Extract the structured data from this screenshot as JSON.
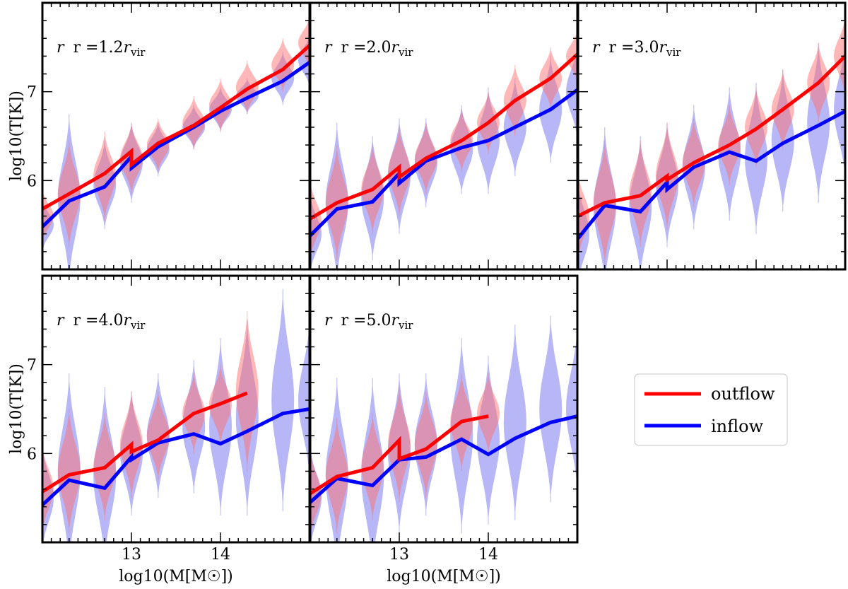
{
  "chart_data": {
    "type": "line",
    "title": "",
    "ylabel": "log10(T[K])",
    "xlabel": "log10(M[M☉])",
    "xlim": [
      12.0,
      15.0
    ],
    "ylim": [
      5.0,
      8.0
    ],
    "xticks": [
      13,
      14
    ],
    "yticks": [
      6,
      7
    ],
    "legend": {
      "placement": "right",
      "entries": [
        {
          "name": "outflow",
          "color": "#ff0000"
        },
        {
          "name": "inflow",
          "color": "#0000ff"
        }
      ]
    },
    "colors": {
      "outflow_line": "#ff0000",
      "inflow_line": "#0000ff",
      "outflow_fill": "#ff6f6f",
      "inflow_fill": "#7c7cf2"
    },
    "panels": [
      {
        "label_prefix": "r =",
        "label_value": "1.2",
        "label_unit": "r",
        "label_sub": "vir",
        "outflow": {
          "x": [
            12.0,
            12.3,
            12.7,
            13.0,
            13.0,
            13.3,
            13.7,
            14.0,
            14.3,
            14.7,
            15.0
          ],
          "y": [
            5.68,
            5.85,
            6.08,
            6.33,
            6.18,
            6.42,
            6.62,
            6.82,
            7.03,
            7.25,
            7.52
          ]
        },
        "inflow": {
          "x": [
            12.0,
            12.3,
            12.7,
            13.0,
            13.0,
            13.3,
            13.7,
            14.0,
            14.3,
            14.7,
            15.0
          ],
          "y": [
            5.48,
            5.77,
            5.93,
            6.27,
            6.14,
            6.38,
            6.6,
            6.78,
            6.93,
            7.12,
            7.33
          ]
        },
        "violins": {
          "x": [
            12.0,
            12.3,
            12.7,
            13.0,
            13.3,
            13.7,
            14.0,
            14.3,
            14.7,
            15.0
          ],
          "outflow_center": [
            5.6,
            5.85,
            6.05,
            6.25,
            6.4,
            6.65,
            6.85,
            7.05,
            7.3,
            7.55
          ],
          "outflow_halfrange": [
            0.3,
            0.6,
            0.5,
            0.4,
            0.3,
            0.3,
            0.3,
            0.3,
            0.3,
            0.3
          ],
          "inflow_center": [
            5.5,
            5.8,
            5.95,
            6.2,
            6.35,
            6.6,
            6.8,
            6.95,
            7.15,
            7.35
          ],
          "inflow_halfrange": [
            0.3,
            0.95,
            0.5,
            0.45,
            0.3,
            0.25,
            0.25,
            0.2,
            0.3,
            0.3
          ]
        }
      },
      {
        "label_prefix": "r =",
        "label_value": "2.0",
        "label_unit": "r",
        "label_sub": "vir",
        "outflow": {
          "x": [
            12.0,
            12.3,
            12.7,
            13.0,
            13.0,
            13.3,
            13.7,
            14.0,
            14.3,
            14.7,
            15.0
          ],
          "y": [
            5.57,
            5.75,
            5.9,
            6.15,
            6.04,
            6.25,
            6.45,
            6.65,
            6.9,
            7.15,
            7.42
          ]
        },
        "inflow": {
          "x": [
            12.0,
            12.3,
            12.7,
            13.0,
            13.0,
            13.3,
            13.7,
            14.0,
            14.3,
            14.7,
            15.0
          ],
          "y": [
            5.38,
            5.68,
            5.76,
            6.08,
            5.97,
            6.22,
            6.37,
            6.45,
            6.6,
            6.8,
            7.02
          ]
        },
        "violins": {
          "x": [
            12.0,
            12.3,
            12.7,
            13.0,
            13.3,
            13.7,
            14.0,
            14.3,
            14.7,
            15.0
          ],
          "outflow_center": [
            5.55,
            5.75,
            5.9,
            6.1,
            6.25,
            6.45,
            6.65,
            6.9,
            7.15,
            7.4
          ],
          "outflow_halfrange": [
            0.45,
            0.65,
            0.5,
            0.5,
            0.4,
            0.35,
            0.35,
            0.4,
            0.35,
            0.3
          ],
          "inflow_center": [
            5.4,
            5.75,
            5.8,
            6.05,
            6.2,
            6.35,
            6.45,
            6.6,
            6.8,
            7.0
          ],
          "inflow_halfrange": [
            0.45,
            0.9,
            0.7,
            0.65,
            0.5,
            0.5,
            0.6,
            0.55,
            0.6,
            0.55
          ]
        }
      },
      {
        "label_prefix": "r =",
        "label_value": "3.0",
        "label_unit": "r",
        "label_sub": "vir",
        "outflow": {
          "x": [
            12.0,
            12.3,
            12.7,
            13.0,
            13.0,
            13.3,
            13.7,
            14.0,
            14.3,
            14.7,
            15.0
          ],
          "y": [
            5.6,
            5.75,
            5.83,
            6.05,
            6.01,
            6.2,
            6.4,
            6.58,
            6.8,
            7.1,
            7.4
          ]
        },
        "inflow": {
          "x": [
            12.0,
            12.3,
            12.7,
            13.0,
            13.0,
            13.3,
            13.7,
            14.0,
            14.3,
            14.7,
            15.0
          ],
          "y": [
            5.35,
            5.72,
            5.65,
            5.98,
            5.9,
            6.15,
            6.32,
            6.22,
            6.42,
            6.62,
            6.78
          ]
        },
        "violins": {
          "x": [
            12.0,
            12.3,
            12.7,
            13.0,
            13.3,
            13.7,
            14.0,
            14.3,
            14.7,
            15.0
          ],
          "outflow_center": [
            5.6,
            5.75,
            5.85,
            6.05,
            6.2,
            6.4,
            6.6,
            6.8,
            7.1,
            7.4
          ],
          "outflow_halfrange": [
            0.5,
            0.7,
            0.6,
            0.6,
            0.5,
            0.45,
            0.45,
            0.45,
            0.45,
            0.45
          ],
          "inflow_center": [
            5.4,
            5.7,
            5.7,
            5.95,
            6.15,
            6.3,
            6.25,
            6.45,
            6.65,
            6.8
          ],
          "inflow_halfrange": [
            0.6,
            0.9,
            0.8,
            0.7,
            0.7,
            0.75,
            0.85,
            0.8,
            0.9,
            0.8
          ]
        }
      },
      {
        "label_prefix": "r =",
        "label_value": "4.0",
        "label_unit": "r",
        "label_sub": "vir",
        "outflow": {
          "x": [
            12.0,
            12.3,
            12.7,
            13.0,
            13.0,
            13.3,
            13.7,
            14.0,
            14.3
          ],
          "y": [
            5.57,
            5.76,
            5.84,
            6.1,
            6.02,
            6.15,
            6.45,
            6.56,
            6.68
          ]
        },
        "inflow": {
          "x": [
            12.0,
            12.3,
            12.7,
            13.0,
            13.0,
            13.3,
            13.7,
            14.0,
            14.3,
            14.7,
            15.0
          ],
          "y": [
            5.42,
            5.7,
            5.61,
            5.96,
            5.93,
            6.12,
            6.22,
            6.11,
            6.25,
            6.45,
            6.5
          ]
        },
        "violins": {
          "x": [
            12.0,
            12.3,
            12.7,
            13.0,
            13.3,
            13.7,
            14.0,
            14.3,
            14.7,
            15.0
          ],
          "outflow_center": [
            5.6,
            5.8,
            5.85,
            6.1,
            6.2,
            6.45,
            6.55,
            6.7,
            null,
            null
          ],
          "outflow_halfrange": [
            0.5,
            0.7,
            0.6,
            0.6,
            0.5,
            0.45,
            0.45,
            0.9,
            null,
            null
          ],
          "inflow_center": [
            5.5,
            5.8,
            5.75,
            6.0,
            6.2,
            6.3,
            6.3,
            6.4,
            6.6,
            6.6
          ],
          "inflow_halfrange": [
            0.6,
            1.1,
            1.0,
            0.7,
            0.7,
            0.75,
            1.0,
            1.1,
            1.25,
            0.9
          ]
        }
      },
      {
        "label_prefix": "r =",
        "label_value": "5.0",
        "label_unit": "r",
        "label_sub": "vir",
        "outflow": {
          "x": [
            12.0,
            12.3,
            12.7,
            13.0,
            13.0,
            13.3,
            13.7,
            14.0
          ],
          "y": [
            5.55,
            5.74,
            5.84,
            6.15,
            5.94,
            6.05,
            6.36,
            6.42
          ]
        },
        "inflow": {
          "x": [
            12.0,
            12.3,
            12.7,
            13.0,
            13.0,
            13.3,
            13.7,
            14.0,
            14.3,
            14.7,
            15.0
          ],
          "y": [
            5.45,
            5.72,
            5.64,
            5.93,
            5.93,
            5.96,
            6.16,
            5.99,
            6.17,
            6.35,
            6.42
          ]
        },
        "violins": {
          "x": [
            12.0,
            12.3,
            12.7,
            13.0,
            13.3,
            13.7,
            14.0,
            14.3,
            14.7,
            15.0
          ],
          "outflow_center": [
            5.55,
            5.75,
            5.85,
            6.1,
            6.1,
            6.35,
            6.45,
            null,
            null,
            null
          ],
          "outflow_halfrange": [
            0.5,
            0.65,
            0.6,
            0.65,
            0.6,
            0.55,
            0.45,
            null,
            null,
            null
          ],
          "inflow_center": [
            5.5,
            5.75,
            5.75,
            6.0,
            6.1,
            6.2,
            6.15,
            6.35,
            6.5,
            6.5
          ],
          "inflow_halfrange": [
            0.6,
            1.1,
            1.1,
            0.9,
            0.8,
            1.1,
            0.95,
            1.1,
            1.05,
            0.95
          ]
        }
      }
    ]
  }
}
